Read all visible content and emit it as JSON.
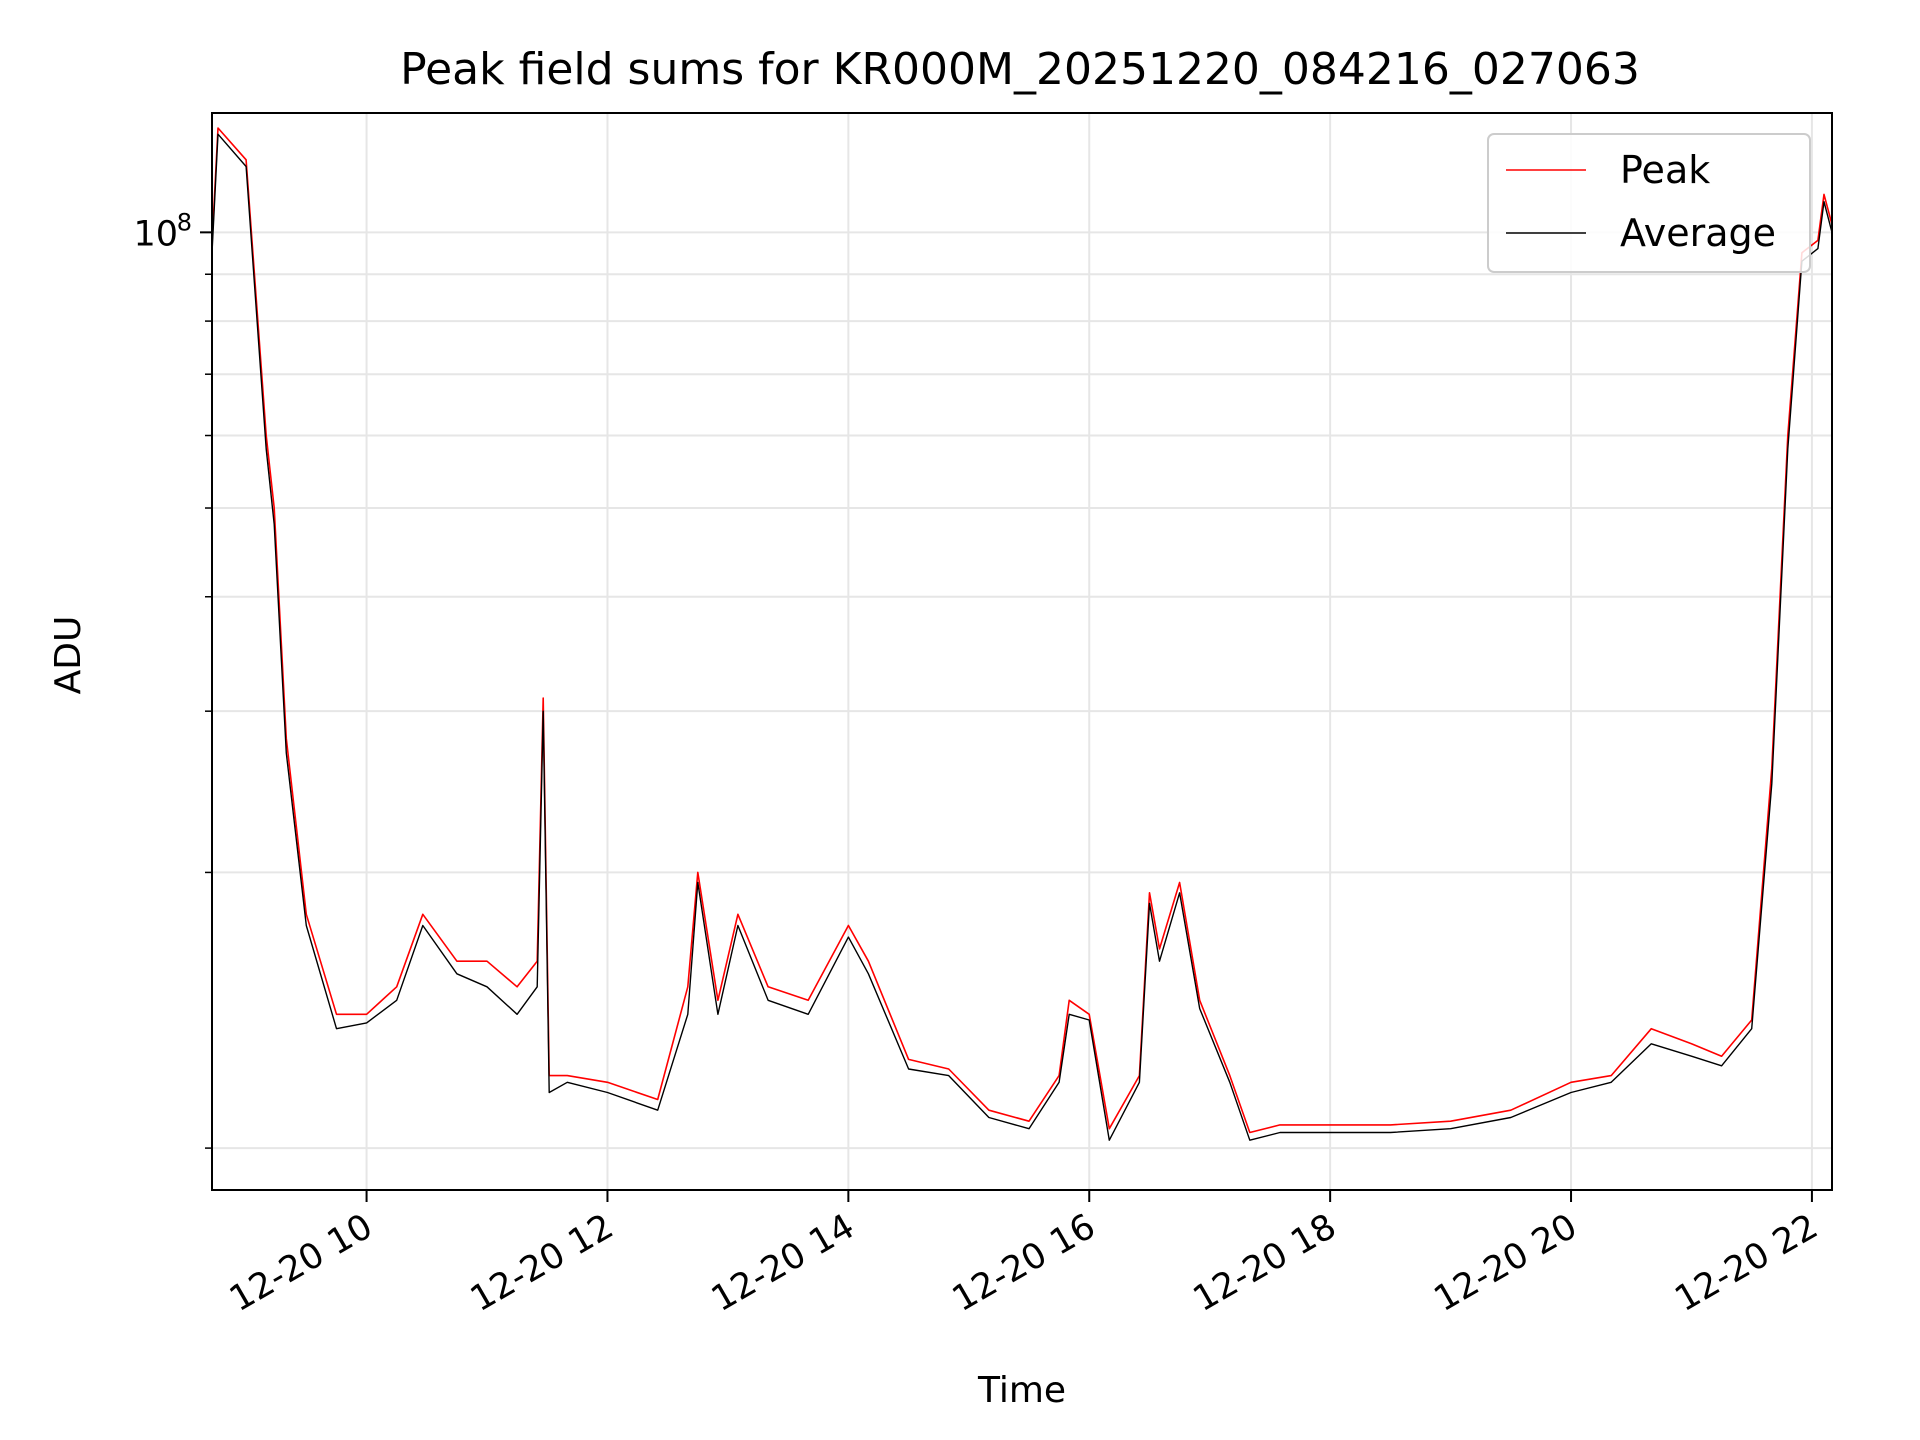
{
  "chart_data": {
    "type": "line",
    "title": "Peak field sums for KR000M_20251220_084216_027063",
    "xlabel": "Time",
    "ylabel": "ADU",
    "y_scale": "log",
    "grid": true,
    "legend_position": "top-right",
    "x_tick_labels": [
      "12-20 10",
      "12-20 12",
      "12-20 14",
      "12-20 16",
      "12-20 18",
      "12-20 20",
      "12-20 22"
    ],
    "x_tick_values": [
      "2025-12-20 10:00",
      "2025-12-20 12:00",
      "2025-12-20 14:00",
      "2025-12-20 16:00",
      "2025-12-20 18:00",
      "2025-12-20 20:00",
      "2025-12-20 22:00"
    ],
    "xlim": [
      "2025-12-20 08:43",
      "2025-12-20 22:10"
    ],
    "ylim": [
      9000000,
      135000000
    ],
    "y_major_ticks": [
      {
        "value": 100000000,
        "base": "10",
        "exp": "8"
      }
    ],
    "y_minor_ticks": [
      10000000,
      20000000,
      30000000,
      40000000,
      50000000,
      60000000,
      70000000,
      80000000,
      90000000
    ],
    "series": [
      {
        "name": "Peak",
        "color": "#ff0000",
        "x": [
          "2025-12-20 08:43",
          "2025-12-20 08:46",
          "2025-12-20 09:00",
          "2025-12-20 09:10",
          "2025-12-20 09:14",
          "2025-12-20 09:20",
          "2025-12-20 09:30",
          "2025-12-20 09:45",
          "2025-12-20 10:00",
          "2025-12-20 10:15",
          "2025-12-20 10:28",
          "2025-12-20 10:45",
          "2025-12-20 11:00",
          "2025-12-20 11:15",
          "2025-12-20 11:25",
          "2025-12-20 11:28",
          "2025-12-20 11:31",
          "2025-12-20 11:40",
          "2025-12-20 12:00",
          "2025-12-20 12:25",
          "2025-12-20 12:40",
          "2025-12-20 12:45",
          "2025-12-20 12:55",
          "2025-12-20 13:05",
          "2025-12-20 13:20",
          "2025-12-20 13:40",
          "2025-12-20 14:00",
          "2025-12-20 14:10",
          "2025-12-20 14:30",
          "2025-12-20 14:50",
          "2025-12-20 15:10",
          "2025-12-20 15:30",
          "2025-12-20 15:45",
          "2025-12-20 15:50",
          "2025-12-20 16:00",
          "2025-12-20 16:10",
          "2025-12-20 16:25",
          "2025-12-20 16:30",
          "2025-12-20 16:35",
          "2025-12-20 16:45",
          "2025-12-20 16:55",
          "2025-12-20 17:10",
          "2025-12-20 17:20",
          "2025-12-20 17:35",
          "2025-12-20 18:00",
          "2025-12-20 18:30",
          "2025-12-20 19:00",
          "2025-12-20 19:30",
          "2025-12-20 20:00",
          "2025-12-20 20:20",
          "2025-12-20 20:40",
          "2025-12-20 21:00",
          "2025-12-20 21:15",
          "2025-12-20 21:30",
          "2025-12-20 21:40",
          "2025-12-20 21:48",
          "2025-12-20 21:55",
          "2025-12-20 22:03",
          "2025-12-20 22:06",
          "2025-12-20 22:10"
        ],
        "values": [
          97000000,
          130000000,
          120000000,
          60000000,
          50000000,
          28000000,
          18000000,
          14000000,
          14000000,
          15000000,
          18000000,
          16000000,
          16000000,
          15000000,
          16000000,
          31000000,
          12000000,
          12000000,
          11800000,
          11300000,
          15000000,
          20000000,
          14500000,
          18000000,
          15000000,
          14500000,
          17500000,
          16000000,
          12500000,
          12200000,
          11000000,
          10700000,
          12000000,
          14500000,
          14000000,
          10500000,
          12000000,
          19000000,
          16500000,
          19500000,
          14500000,
          12000000,
          10400000,
          10600000,
          10600000,
          10600000,
          10700000,
          11000000,
          11800000,
          12000000,
          13500000,
          13000000,
          12600000,
          13800000,
          26000000,
          60000000,
          95000000,
          98000000,
          110000000,
          102000000
        ]
      },
      {
        "name": "Average",
        "color": "#000000",
        "x": [
          "2025-12-20 08:43",
          "2025-12-20 08:46",
          "2025-12-20 09:00",
          "2025-12-20 09:10",
          "2025-12-20 09:14",
          "2025-12-20 09:20",
          "2025-12-20 09:30",
          "2025-12-20 09:45",
          "2025-12-20 10:00",
          "2025-12-20 10:15",
          "2025-12-20 10:28",
          "2025-12-20 10:45",
          "2025-12-20 11:00",
          "2025-12-20 11:15",
          "2025-12-20 11:25",
          "2025-12-20 11:28",
          "2025-12-20 11:31",
          "2025-12-20 11:40",
          "2025-12-20 12:00",
          "2025-12-20 12:25",
          "2025-12-20 12:40",
          "2025-12-20 12:45",
          "2025-12-20 12:55",
          "2025-12-20 13:05",
          "2025-12-20 13:20",
          "2025-12-20 13:40",
          "2025-12-20 14:00",
          "2025-12-20 14:10",
          "2025-12-20 14:30",
          "2025-12-20 14:50",
          "2025-12-20 15:10",
          "2025-12-20 15:30",
          "2025-12-20 15:45",
          "2025-12-20 15:50",
          "2025-12-20 16:00",
          "2025-12-20 16:10",
          "2025-12-20 16:25",
          "2025-12-20 16:30",
          "2025-12-20 16:35",
          "2025-12-20 16:45",
          "2025-12-20 16:55",
          "2025-12-20 17:10",
          "2025-12-20 17:20",
          "2025-12-20 17:35",
          "2025-12-20 18:00",
          "2025-12-20 18:30",
          "2025-12-20 19:00",
          "2025-12-20 19:30",
          "2025-12-20 20:00",
          "2025-12-20 20:20",
          "2025-12-20 20:40",
          "2025-12-20 21:00",
          "2025-12-20 21:15",
          "2025-12-20 21:30",
          "2025-12-20 21:40",
          "2025-12-20 21:48",
          "2025-12-20 21:55",
          "2025-12-20 22:03",
          "2025-12-20 22:06",
          "2025-12-20 22:10"
        ],
        "values": [
          95000000,
          128000000,
          118000000,
          58000000,
          48000000,
          27000000,
          17500000,
          13500000,
          13700000,
          14500000,
          17500000,
          15500000,
          15000000,
          14000000,
          15000000,
          30000000,
          11500000,
          11800000,
          11500000,
          11000000,
          14000000,
          19500000,
          14000000,
          17500000,
          14500000,
          14000000,
          17000000,
          15500000,
          12200000,
          12000000,
          10800000,
          10500000,
          11800000,
          14000000,
          13800000,
          10200000,
          11800000,
          18500000,
          16000000,
          19000000,
          14200000,
          11800000,
          10200000,
          10400000,
          10400000,
          10400000,
          10500000,
          10800000,
          11500000,
          11800000,
          13000000,
          12600000,
          12300000,
          13500000,
          25000000,
          58000000,
          93000000,
          96000000,
          108000000,
          100000000
        ]
      }
    ]
  }
}
